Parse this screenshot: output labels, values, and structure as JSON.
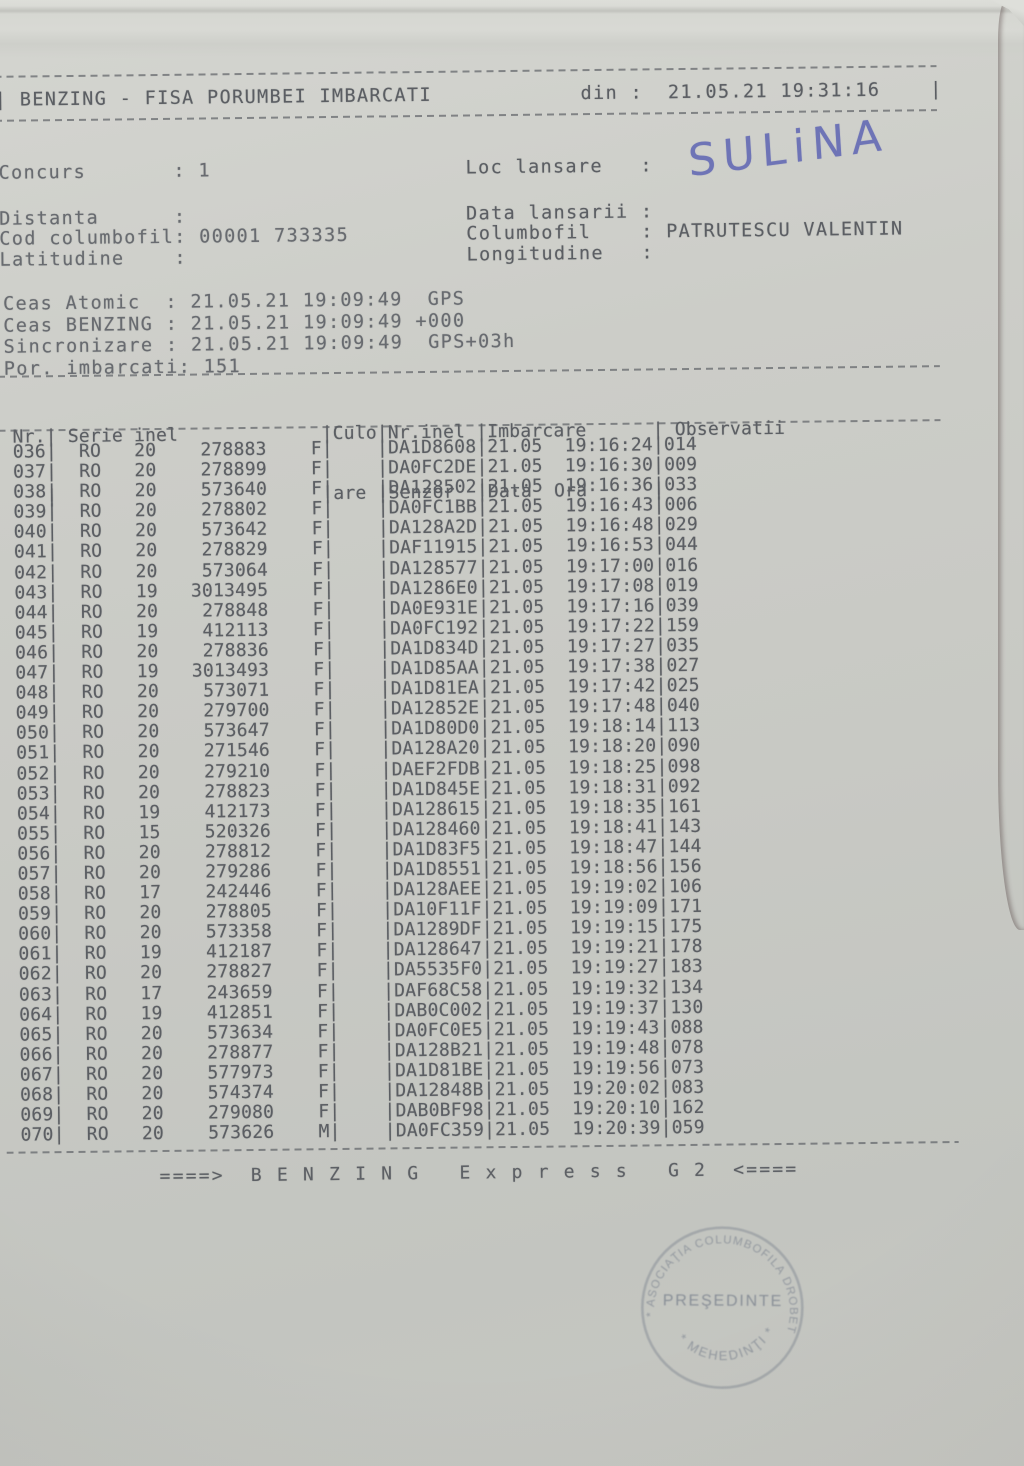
{
  "document": {
    "kind": "BENZING basketing sheet photo",
    "colors": {
      "paper": "#cbccc7",
      "ink": "#5b5e63",
      "handwriting_ink": "#6168b4",
      "stamp_ink": "#7e8590",
      "table_edge_red": "#6e2133",
      "table_edge_brown": "#6f5a35"
    }
  },
  "header": {
    "left_bar": "|",
    "title": "BENZING - FISA PORUMBEI IMBARCATI",
    "date_label": "din :",
    "date_value": "21.05.21 19:31:16",
    "right_bar": "|"
  },
  "info_left": [
    {
      "label": "Concurs",
      "value": "1"
    },
    {
      "label": "Distanta",
      "value": ""
    },
    {
      "label": "Cod columbofil",
      "value": "00001 733335"
    },
    {
      "label": "Latitudine",
      "value": ""
    }
  ],
  "info_right": [
    {
      "label": "Loc lansare",
      "value": ""
    },
    {
      "label": "Data lansarii",
      "value": ""
    },
    {
      "label": "Columbofil",
      "value": "PATRUTESCU VALENTIN"
    },
    {
      "label": "Longitudine",
      "value": ""
    }
  ],
  "handwritten_loc_lansare": "SULiNA",
  "clock": [
    {
      "label": "Ceas Atomic",
      "value": "21.05.21 19:09:49  GPS"
    },
    {
      "label": "Ceas BENZING",
      "value": "21.05.21 19:09:49 +000"
    },
    {
      "label": "Sincronizare",
      "value": "21.05.21 19:09:49  GPS+03h"
    },
    {
      "label": "Por. imbarcati",
      "value": "151"
    }
  ],
  "table": {
    "columns": [
      {
        "l1": "Nr.",
        "l2": ""
      },
      {
        "l1": " Serie inel",
        "l2": ""
      },
      {
        "l1": "Culo",
        "l2": "are"
      },
      {
        "l1": "Nr.inel",
        "l2": "Senzor"
      },
      {
        "l1": "Imbarcare",
        "l2": "Data  Ora"
      },
      {
        "l1": " Observatii",
        "l2": ""
      }
    ],
    "rows": [
      {
        "nr": "036",
        "country": "RO",
        "year": "20",
        "ring": "278883",
        "sex": "F",
        "sensor": "DA1D8608",
        "date": "21.05",
        "time": "19:16:24",
        "obs": "014"
      },
      {
        "nr": "037",
        "country": "RO",
        "year": "20",
        "ring": "278899",
        "sex": "F",
        "sensor": "DA0FC2DE",
        "date": "21.05",
        "time": "19:16:30",
        "obs": "009"
      },
      {
        "nr": "038",
        "country": "RO",
        "year": "20",
        "ring": "573640",
        "sex": "F",
        "sensor": "DA128502",
        "date": "21.05",
        "time": "19:16:36",
        "obs": "033"
      },
      {
        "nr": "039",
        "country": "RO",
        "year": "20",
        "ring": "278802",
        "sex": "F",
        "sensor": "DA0FC1BB",
        "date": "21.05",
        "time": "19:16:43",
        "obs": "006"
      },
      {
        "nr": "040",
        "country": "RO",
        "year": "20",
        "ring": "573642",
        "sex": "F",
        "sensor": "DA128A2D",
        "date": "21.05",
        "time": "19:16:48",
        "obs": "029"
      },
      {
        "nr": "041",
        "country": "RO",
        "year": "20",
        "ring": "278829",
        "sex": "F",
        "sensor": "DAF11915",
        "date": "21.05",
        "time": "19:16:53",
        "obs": "044"
      },
      {
        "nr": "042",
        "country": "RO",
        "year": "20",
        "ring": "573064",
        "sex": "F",
        "sensor": "DA128577",
        "date": "21.05",
        "time": "19:17:00",
        "obs": "016"
      },
      {
        "nr": "043",
        "country": "RO",
        "year": "19",
        "ring": "3013495",
        "sex": "F",
        "sensor": "DA1286E0",
        "date": "21.05",
        "time": "19:17:08",
        "obs": "019"
      },
      {
        "nr": "044",
        "country": "RO",
        "year": "20",
        "ring": "278848",
        "sex": "F",
        "sensor": "DA0E931E",
        "date": "21.05",
        "time": "19:17:16",
        "obs": "039"
      },
      {
        "nr": "045",
        "country": "RO",
        "year": "19",
        "ring": "412113",
        "sex": "F",
        "sensor": "DA0FC192",
        "date": "21.05",
        "time": "19:17:22",
        "obs": "159"
      },
      {
        "nr": "046",
        "country": "RO",
        "year": "20",
        "ring": "278836",
        "sex": "F",
        "sensor": "DA1D834D",
        "date": "21.05",
        "time": "19:17:27",
        "obs": "035"
      },
      {
        "nr": "047",
        "country": "RO",
        "year": "19",
        "ring": "3013493",
        "sex": "F",
        "sensor": "DA1D85AA",
        "date": "21.05",
        "time": "19:17:38",
        "obs": "027"
      },
      {
        "nr": "048",
        "country": "RO",
        "year": "20",
        "ring": "573071",
        "sex": "F",
        "sensor": "DA1D81EA",
        "date": "21.05",
        "time": "19:17:42",
        "obs": "025"
      },
      {
        "nr": "049",
        "country": "RO",
        "year": "20",
        "ring": "279700",
        "sex": "F",
        "sensor": "DA12852E",
        "date": "21.05",
        "time": "19:17:48",
        "obs": "040"
      },
      {
        "nr": "050",
        "country": "RO",
        "year": "20",
        "ring": "573647",
        "sex": "F",
        "sensor": "DA1D80D0",
        "date": "21.05",
        "time": "19:18:14",
        "obs": "113"
      },
      {
        "nr": "051",
        "country": "RO",
        "year": "20",
        "ring": "271546",
        "sex": "F",
        "sensor": "DA128A20",
        "date": "21.05",
        "time": "19:18:20",
        "obs": "090"
      },
      {
        "nr": "052",
        "country": "RO",
        "year": "20",
        "ring": "279210",
        "sex": "F",
        "sensor": "DAEF2FDB",
        "date": "21.05",
        "time": "19:18:25",
        "obs": "098"
      },
      {
        "nr": "053",
        "country": "RO",
        "year": "20",
        "ring": "278823",
        "sex": "F",
        "sensor": "DA1D845E",
        "date": "21.05",
        "time": "19:18:31",
        "obs": "092"
      },
      {
        "nr": "054",
        "country": "RO",
        "year": "19",
        "ring": "412173",
        "sex": "F",
        "sensor": "DA128615",
        "date": "21.05",
        "time": "19:18:35",
        "obs": "161"
      },
      {
        "nr": "055",
        "country": "RO",
        "year": "15",
        "ring": "520326",
        "sex": "F",
        "sensor": "DA128460",
        "date": "21.05",
        "time": "19:18:41",
        "obs": "143"
      },
      {
        "nr": "056",
        "country": "RO",
        "year": "20",
        "ring": "278812",
        "sex": "F",
        "sensor": "DA1D83F5",
        "date": "21.05",
        "time": "19:18:47",
        "obs": "144"
      },
      {
        "nr": "057",
        "country": "RO",
        "year": "20",
        "ring": "279286",
        "sex": "F",
        "sensor": "DA1D8551",
        "date": "21.05",
        "time": "19:18:56",
        "obs": "156"
      },
      {
        "nr": "058",
        "country": "RO",
        "year": "17",
        "ring": "242446",
        "sex": "F",
        "sensor": "DA128AEE",
        "date": "21.05",
        "time": "19:19:02",
        "obs": "106"
      },
      {
        "nr": "059",
        "country": "RO",
        "year": "20",
        "ring": "278805",
        "sex": "F",
        "sensor": "DA10F11F",
        "date": "21.05",
        "time": "19:19:09",
        "obs": "171"
      },
      {
        "nr": "060",
        "country": "RO",
        "year": "20",
        "ring": "573358",
        "sex": "F",
        "sensor": "DA1289DF",
        "date": "21.05",
        "time": "19:19:15",
        "obs": "175"
      },
      {
        "nr": "061",
        "country": "RO",
        "year": "19",
        "ring": "412187",
        "sex": "F",
        "sensor": "DA128647",
        "date": "21.05",
        "time": "19:19:21",
        "obs": "178"
      },
      {
        "nr": "062",
        "country": "RO",
        "year": "20",
        "ring": "278827",
        "sex": "F",
        "sensor": "DA5535F0",
        "date": "21.05",
        "time": "19:19:27",
        "obs": "183"
      },
      {
        "nr": "063",
        "country": "RO",
        "year": "17",
        "ring": "243659",
        "sex": "F",
        "sensor": "DAF68C58",
        "date": "21.05",
        "time": "19:19:32",
        "obs": "134"
      },
      {
        "nr": "064",
        "country": "RO",
        "year": "19",
        "ring": "412851",
        "sex": "F",
        "sensor": "DAB0C002",
        "date": "21.05",
        "time": "19:19:37",
        "obs": "130"
      },
      {
        "nr": "065",
        "country": "RO",
        "year": "20",
        "ring": "573634",
        "sex": "F",
        "sensor": "DA0FC0E5",
        "date": "21.05",
        "time": "19:19:43",
        "obs": "088"
      },
      {
        "nr": "066",
        "country": "RO",
        "year": "20",
        "ring": "278877",
        "sex": "F",
        "sensor": "DA128B21",
        "date": "21.05",
        "time": "19:19:48",
        "obs": "078"
      },
      {
        "nr": "067",
        "country": "RO",
        "year": "20",
        "ring": "577973",
        "sex": "F",
        "sensor": "DA1D81BE",
        "date": "21.05",
        "time": "19:19:56",
        "obs": "073"
      },
      {
        "nr": "068",
        "country": "RO",
        "year": "20",
        "ring": "574374",
        "sex": "F",
        "sensor": "DA12848B",
        "date": "21.05",
        "time": "19:20:02",
        "obs": "083"
      },
      {
        "nr": "069",
        "country": "RO",
        "year": "20",
        "ring": "279080",
        "sex": "F",
        "sensor": "DAB0BF98",
        "date": "21.05",
        "time": "19:20:10",
        "obs": "162"
      },
      {
        "nr": "070",
        "country": "RO",
        "year": "20",
        "ring": "573626",
        "sex": "M",
        "sensor": "DA0FC359",
        "date": "21.05",
        "time": "19:20:39",
        "obs": "059"
      }
    ]
  },
  "footer": {
    "line": "====>  B E N Z I N G   E x p r e s s   G 2  <===="
  },
  "stamp": {
    "arc_top": "* ASOCIAŢIA COLUMBOFILA DROBETA *",
    "center": "PREŞEDINTE",
    "arc_bottom": "* MEHEDINŢI *"
  }
}
